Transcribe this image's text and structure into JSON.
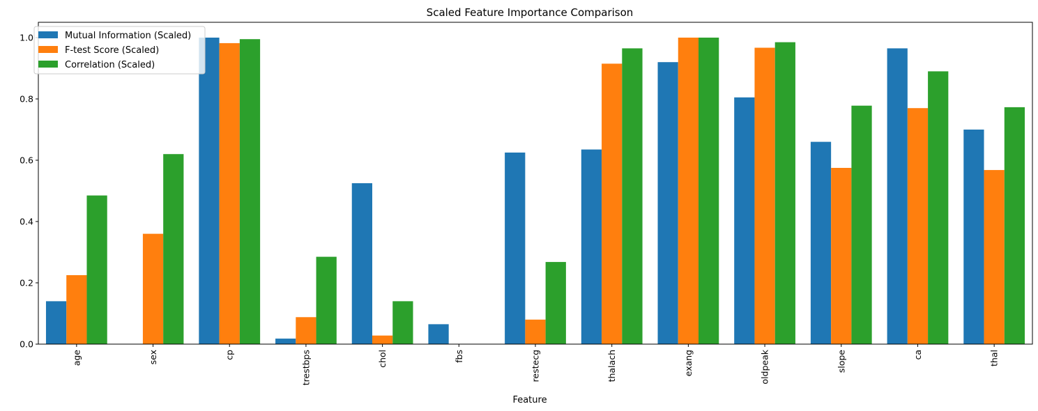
{
  "chart_data": {
    "type": "bar",
    "title": "Scaled Feature Importance Comparison",
    "xlabel": "Feature",
    "ylabel": "",
    "ylim": [
      0,
      1.05
    ],
    "yticks": [
      "0.0",
      "0.2",
      "0.4",
      "0.6",
      "0.8",
      "1.0"
    ],
    "categories": [
      "age",
      "sex",
      "cp",
      "trestbps",
      "chol",
      "fbs",
      "restecg",
      "thalach",
      "exang",
      "oldpeak",
      "slope",
      "ca",
      "thal"
    ],
    "series": [
      {
        "name": "Mutual Information (Scaled)",
        "color": "#1f77b4",
        "values": [
          0.14,
          0.0,
          1.0,
          0.018,
          0.525,
          0.065,
          0.625,
          0.635,
          0.92,
          0.805,
          0.66,
          0.965,
          0.7
        ]
      },
      {
        "name": "F-test Score (Scaled)",
        "color": "#ff7f0e",
        "values": [
          0.225,
          0.36,
          0.982,
          0.088,
          0.028,
          0.0,
          0.08,
          0.915,
          1.0,
          0.967,
          0.575,
          0.77,
          0.568
        ]
      },
      {
        "name": "Correlation (Scaled)",
        "color": "#2ca02c",
        "values": [
          0.485,
          0.62,
          0.995,
          0.285,
          0.14,
          0.0,
          0.268,
          0.965,
          1.0,
          0.985,
          0.778,
          0.89,
          0.773
        ]
      }
    ],
    "legend_position": "upper-left",
    "grid": false
  }
}
